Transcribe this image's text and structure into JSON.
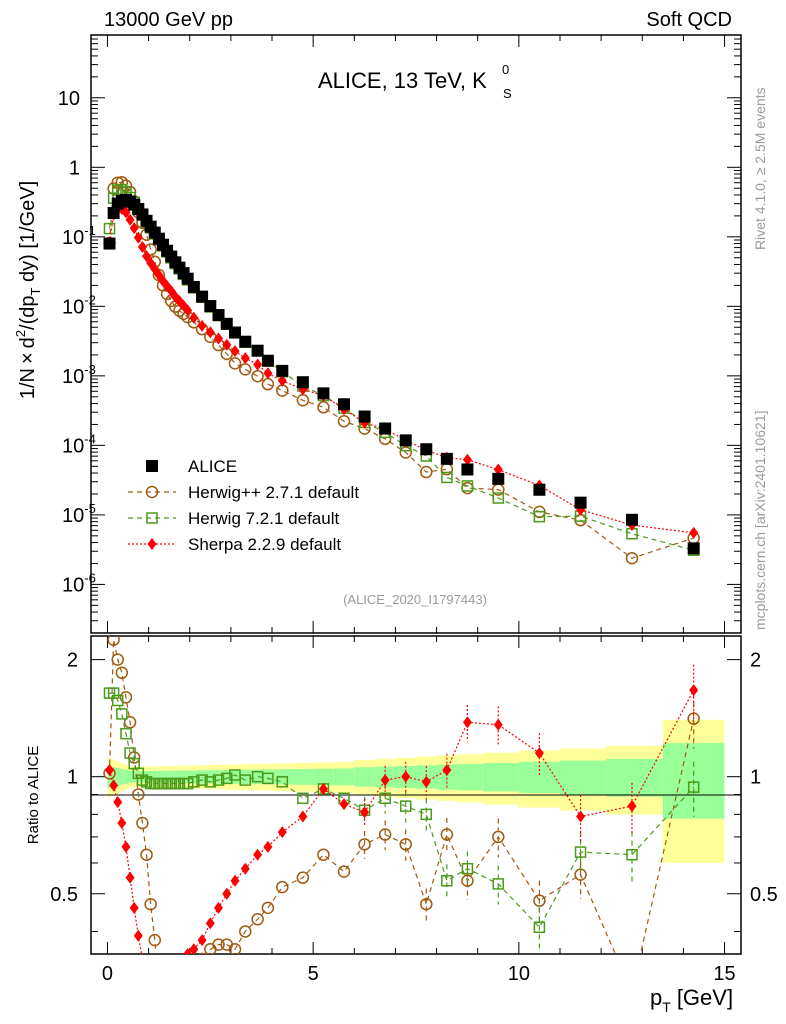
{
  "header": {
    "left": "13000 GeV pp",
    "right": "Soft QCD"
  },
  "side_labels": {
    "rivet": "Rivet 4.1.0, ≥ 2.5M events",
    "source": "mcplots.cern.ch [arXiv:2401.10621]"
  },
  "chart_data": {
    "type": "scatter",
    "title": "ALICE, 13 TeV, K",
    "title_sup": "0",
    "title_sub": "S",
    "analysis_id": "(ALICE_2020_I1797443)",
    "xlabel": "p",
    "xlabel_sub": "T",
    "xlabel_unit": "[GeV]",
    "ylabel": "1/N × d²/(dp_T dy) [1/GeV]",
    "ylabel_parts": {
      "a": "1/N",
      "times": "×",
      "b": "d",
      "sup": "2",
      "c": "/(dp",
      "sub": "T",
      "d": " dy) [1/GeV]"
    },
    "ratio_ylabel": "Ratio to ALICE",
    "xlim": [
      -0.4,
      15.4
    ],
    "ylim_log": [
      2e-07,
      80
    ],
    "ratio_ylim": [
      0.35,
      2.3
    ],
    "x_ticks": [
      "0",
      "5",
      "10",
      "15"
    ],
    "y_ticks": [
      {
        "base": "10",
        "exp": "",
        "label": "10"
      },
      {
        "base": "1",
        "exp": "",
        "label": "1"
      },
      {
        "base": "10",
        "exp": "-1",
        "label": "10^-1"
      },
      {
        "base": "10",
        "exp": "-2",
        "label": "10^-2"
      },
      {
        "base": "10",
        "exp": "-3",
        "label": "10^-3"
      },
      {
        "base": "10",
        "exp": "-4",
        "label": "10^-4"
      },
      {
        "base": "10",
        "exp": "-5",
        "label": "10^-5"
      },
      {
        "base": "10",
        "exp": "-6",
        "label": "10^-6"
      }
    ],
    "ratio_ticks": [
      "2",
      "1",
      "0.5"
    ],
    "x": [
      0.05,
      0.15,
      0.25,
      0.35,
      0.45,
      0.55,
      0.65,
      0.75,
      0.85,
      0.95,
      1.05,
      1.15,
      1.25,
      1.35,
      1.45,
      1.55,
      1.65,
      1.75,
      1.85,
      1.95,
      2.1,
      2.3,
      2.5,
      2.7,
      2.9,
      3.1,
      3.35,
      3.65,
      3.9,
      4.25,
      4.75,
      5.25,
      5.75,
      6.25,
      6.75,
      7.25,
      7.75,
      8.25,
      8.75,
      9.5,
      10.5,
      11.5,
      12.75,
      14.25
    ],
    "series": [
      {
        "name": "ALICE",
        "marker": "square-filled",
        "color": "#000000",
        "values": [
          0.08,
          0.22,
          0.3,
          0.33,
          0.34,
          0.32,
          0.29,
          0.25,
          0.21,
          0.17,
          0.14,
          0.115,
          0.094,
          0.077,
          0.063,
          0.052,
          0.043,
          0.036,
          0.03,
          0.025,
          0.019,
          0.0138,
          0.0101,
          0.0075,
          0.0056,
          0.0042,
          0.0031,
          0.0023,
          0.00165,
          0.00118,
          0.00081,
          0.00056,
          0.00039,
          0.00026,
          0.000175,
          0.000118,
          8.8e-05,
          6.4e-05,
          4.5e-05,
          3.3e-05,
          2.3e-05,
          1.5e-05,
          8.5e-06,
          3.3e-06
        ]
      },
      {
        "name": "Herwig++ 2.7.1 default",
        "marker": "circle-open",
        "color": "#a05a10",
        "line": "dashed",
        "ratio": [
          1.02,
          2.25,
          2.0,
          1.85,
          1.6,
          1.38,
          1.12,
          0.9,
          0.76,
          0.63,
          0.47,
          0.38,
          0.3,
          0.26,
          0.24,
          0.23,
          0.23,
          0.24,
          0.26,
          0.28,
          0.31,
          0.34,
          0.36,
          0.37,
          0.37,
          0.36,
          0.4,
          0.43,
          0.46,
          0.52,
          0.55,
          0.63,
          0.57,
          0.67,
          0.71,
          0.67,
          0.47,
          0.71,
          0.54,
          0.7,
          0.48,
          0.56,
          0.28,
          1.41
        ]
      },
      {
        "name": "Herwig 7.2.1 default",
        "marker": "square-open",
        "color": "#4a9a1a",
        "line": "dashed",
        "ratio": [
          1.64,
          1.64,
          1.57,
          1.45,
          1.29,
          1.15,
          1.08,
          1.02,
          0.98,
          0.97,
          0.96,
          0.96,
          0.96,
          0.96,
          0.96,
          0.96,
          0.96,
          0.96,
          0.96,
          0.96,
          0.97,
          0.98,
          0.97,
          0.98,
          0.99,
          1.01,
          0.98,
          1.0,
          0.99,
          0.97,
          0.88,
          0.93,
          0.88,
          0.82,
          0.88,
          0.84,
          0.8,
          0.54,
          0.58,
          0.53,
          0.41,
          0.64,
          0.63,
          0.94
        ]
      },
      {
        "name": "Sherpa 2.2.9 default",
        "marker": "diamond-filled",
        "color": "#ff0000",
        "line": "dotted",
        "ratio": [
          1.04,
          0.95,
          0.86,
          0.76,
          0.66,
          0.55,
          0.46,
          0.39,
          0.34,
          0.31,
          0.3,
          0.3,
          0.3,
          0.3,
          0.31,
          0.32,
          0.32,
          0.33,
          0.34,
          0.35,
          0.36,
          0.38,
          0.42,
          0.46,
          0.5,
          0.54,
          0.58,
          0.63,
          0.66,
          0.72,
          0.79,
          0.93,
          0.85,
          0.81,
          0.98,
          1.0,
          0.97,
          1.04,
          1.38,
          1.36,
          1.15,
          0.79,
          0.84,
          1.67
        ]
      }
    ],
    "legend_position": "lower-left of main panel"
  }
}
